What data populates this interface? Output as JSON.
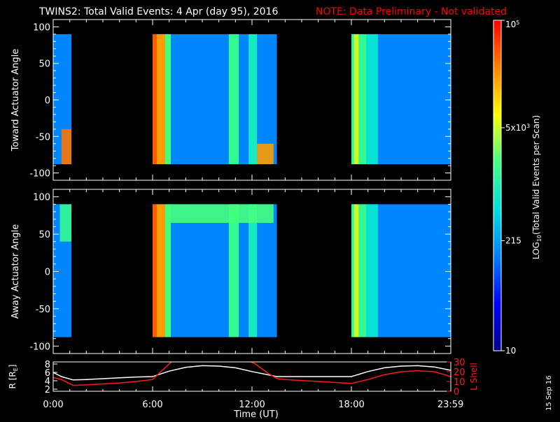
{
  "header": {
    "title": "TWINS2: Total Valid Events:  4 Apr (day  95), 2016",
    "note": "NOTE: Data Preliminary - Not validated"
  },
  "colors": {
    "background": "#000000",
    "foreground": "#ffffff",
    "note": "#ff0000",
    "r_line": "#ffffff",
    "l_shell_line": "#ff1a1a",
    "colormap": [
      "#00008b",
      "#0000ff",
      "#0080ff",
      "#00e0e0",
      "#40ff80",
      "#ffff00",
      "#ff8000",
      "#ff0000"
    ]
  },
  "colorbar": {
    "label": "LOG10(Total Valid Events per Scan)",
    "label_base": "LOG",
    "label_sub": "10",
    "label_rest": "(Total Valid Events per Scan)",
    "scale": "log",
    "range": [
      10,
      100000
    ],
    "ticks": [
      {
        "value": 10,
        "label": "10"
      },
      {
        "value": 215,
        "label": "215"
      },
      {
        "value": 5000,
        "label": "5x10",
        "sup": "3"
      },
      {
        "value": 100000,
        "label": "10",
        "sup": "5"
      }
    ]
  },
  "footer": {
    "xlabel": "Time (UT)",
    "date_stamp": "15 Sep 16"
  },
  "chart_data": [
    {
      "type": "heatmap",
      "name": "toward",
      "ylabel": "Toward Actuator Angle",
      "xlim": [
        0,
        24
      ],
      "ylim": [
        -110,
        110
      ],
      "yticks": [
        -100,
        -50,
        0,
        50,
        100
      ],
      "angle_range": [
        -88,
        90
      ],
      "data_intervals_hours": [
        [
          0.0,
          1.1
        ],
        [
          6.0,
          13.5
        ],
        [
          18.0,
          24.0
        ]
      ],
      "bright_columns": [
        {
          "t": [
            6.0,
            6.25
          ],
          "value": 40000
        },
        {
          "t": [
            6.25,
            6.75
          ],
          "value": 20000
        },
        {
          "t": [
            6.75,
            7.1
          ],
          "value": 2000
        },
        {
          "t": [
            10.6,
            11.2
          ],
          "value": 1500
        },
        {
          "t": [
            11.8,
            12.3
          ],
          "value": 800
        },
        {
          "t": [
            18.0,
            18.15
          ],
          "value": 1500
        },
        {
          "t": [
            18.15,
            18.45
          ],
          "value": 5000
        },
        {
          "t": [
            18.45,
            18.9
          ],
          "value": 1500
        },
        {
          "t": [
            18.9,
            19.6
          ],
          "value": 600
        }
      ],
      "hot_spots": [
        {
          "t": [
            0.5,
            1.1
          ],
          "angle": [
            -88,
            -40
          ],
          "value": 30000
        },
        {
          "t": [
            12.3,
            13.3
          ],
          "angle": [
            -88,
            -60
          ],
          "value": 20000
        }
      ],
      "background_value": 150
    },
    {
      "type": "heatmap",
      "name": "away",
      "ylabel": "Away Actuator Angle",
      "xlim": [
        0,
        24
      ],
      "ylim": [
        -110,
        110
      ],
      "yticks": [
        -100,
        -50,
        0,
        50,
        100
      ],
      "angle_range": [
        -88,
        90
      ],
      "data_intervals_hours": [
        [
          0.0,
          1.1
        ],
        [
          6.0,
          13.5
        ],
        [
          18.0,
          24.0
        ]
      ],
      "bright_columns": [
        {
          "t": [
            6.0,
            6.25
          ],
          "value": 40000
        },
        {
          "t": [
            6.25,
            6.75
          ],
          "value": 20000
        },
        {
          "t": [
            6.75,
            7.1
          ],
          "value": 2000
        },
        {
          "t": [
            10.6,
            11.2
          ],
          "value": 1500
        },
        {
          "t": [
            11.8,
            12.3
          ],
          "value": 800
        },
        {
          "t": [
            18.0,
            18.15
          ],
          "value": 1500
        },
        {
          "t": [
            18.15,
            18.45
          ],
          "value": 5000
        },
        {
          "t": [
            18.45,
            18.9
          ],
          "value": 1500
        },
        {
          "t": [
            18.9,
            19.6
          ],
          "value": 600
        }
      ],
      "hot_spots": [
        {
          "t": [
            0.4,
            1.1
          ],
          "angle": [
            40,
            90
          ],
          "value": 1500
        },
        {
          "t": [
            7.0,
            13.3
          ],
          "angle": [
            65,
            90
          ],
          "value": 2000
        }
      ],
      "background_value": 150
    },
    {
      "type": "line",
      "name": "orbit",
      "ylabel_left": "R [RE]",
      "ylabel_left_base": "R [R",
      "ylabel_left_sub": "E",
      "ylabel_left_end": "]",
      "ylabel_right": "L Shell",
      "xlim": [
        0,
        24
      ],
      "ylim_left": [
        1.5,
        8.5
      ],
      "ylim_right": [
        0,
        30
      ],
      "yticks_left": [
        2,
        4,
        6,
        8
      ],
      "yticks_right": [
        0,
        10,
        20,
        30
      ],
      "xticks": [
        {
          "value": 0,
          "label": "0:00"
        },
        {
          "value": 6,
          "label": "6:00"
        },
        {
          "value": 12,
          "label": "12:00"
        },
        {
          "value": 18,
          "label": "18:00"
        },
        {
          "value": 23.983,
          "label": "23:59"
        }
      ],
      "series": [
        {
          "name": "R",
          "axis": "left",
          "x": [
            0,
            0.5,
            1.2,
            2,
            3,
            4,
            5,
            6,
            7,
            8,
            9,
            10,
            11,
            12,
            13,
            13.5,
            14,
            15,
            16,
            17,
            18,
            19,
            20,
            21,
            22,
            23,
            24
          ],
          "y": [
            6.0,
            5.0,
            4.2,
            4.3,
            4.5,
            4.7,
            4.9,
            5.0,
            6.3,
            7.2,
            7.6,
            7.5,
            7.1,
            6.2,
            5.4,
            5.0,
            5.0,
            5.0,
            5.0,
            5.0,
            5.0,
            6.2,
            7.1,
            7.5,
            7.6,
            7.3,
            6.5
          ]
        },
        {
          "name": "L Shell",
          "axis": "right",
          "x": [
            0,
            0.5,
            1.2,
            2,
            3,
            4,
            5,
            6,
            6.5,
            7,
            7.2,
            11.8,
            12.2,
            13,
            13.5,
            14,
            15,
            16,
            17,
            18,
            19,
            20,
            21,
            22,
            23,
            24
          ],
          "y": [
            14,
            12,
            6,
            6.5,
            7.5,
            8.5,
            10,
            12,
            20,
            28,
            31,
            31,
            28,
            18,
            13,
            12,
            11,
            10,
            9,
            8,
            12,
            17,
            20,
            21,
            20,
            15
          ]
        }
      ]
    }
  ]
}
